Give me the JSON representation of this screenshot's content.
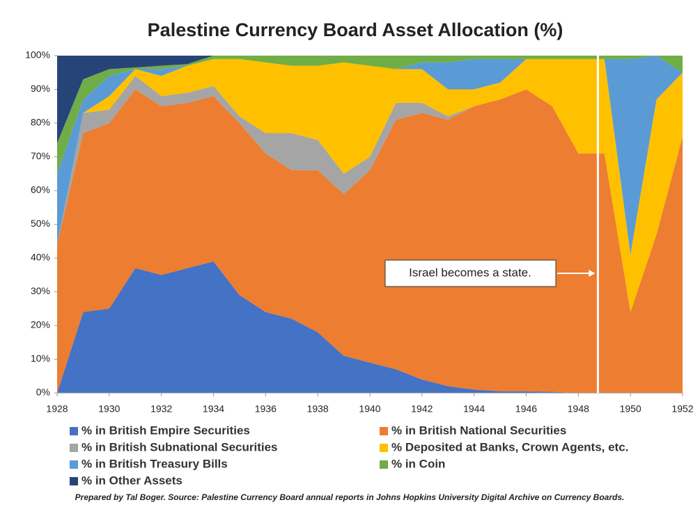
{
  "chart_data": {
    "type": "stacked_area",
    "title": "Palestine Currency Board Asset Allocation (%)",
    "x": [
      1928,
      1929,
      1930,
      1931,
      1932,
      1933,
      1934,
      1935,
      1936,
      1937,
      1938,
      1939,
      1940,
      1941,
      1942,
      1943,
      1944,
      1945,
      1946,
      1947,
      1948,
      1949,
      1950,
      1951,
      1952
    ],
    "series": [
      {
        "name": "% in British Empire Securities",
        "color": "#4472c4",
        "values": [
          0,
          24,
          25,
          37,
          35,
          37,
          39,
          29,
          24,
          22,
          18,
          11,
          9,
          7,
          4,
          2,
          1,
          0.5,
          0.5,
          0.3,
          0,
          0,
          0,
          0,
          0
        ]
      },
      {
        "name": "% in British National Securities",
        "color": "#ed7d31",
        "values": [
          44,
          53,
          55,
          53,
          50,
          49,
          49,
          51,
          47,
          44,
          48,
          48,
          57,
          74,
          79,
          79,
          84,
          86.5,
          89.5,
          84.7,
          71,
          71,
          24,
          47,
          76
        ]
      },
      {
        "name": "% in British Subnational Securities",
        "color": "#a5a5a5",
        "values": [
          0,
          6,
          4,
          4,
          3,
          3,
          3,
          2,
          6,
          11,
          9,
          6,
          4,
          5,
          3,
          1,
          0,
          0,
          0,
          0,
          0,
          0,
          0,
          0,
          0
        ]
      },
      {
        "name": "% Deposited at Banks, Crown Agents, etc.",
        "color": "#ffc000",
        "values": [
          0,
          0,
          4,
          2,
          6,
          8,
          8,
          17,
          21,
          20,
          22,
          33,
          27,
          10,
          10,
          8,
          5,
          5,
          9,
          14,
          28,
          28,
          17,
          40,
          19
        ]
      },
      {
        "name": "% in British Treasury Bills",
        "color": "#5b9bd5",
        "values": [
          21,
          4,
          6,
          0,
          2,
          0,
          0,
          0,
          0,
          0,
          0,
          0,
          0,
          0,
          2,
          8,
          9,
          7,
          0,
          0,
          0,
          0,
          58,
          13,
          0
        ]
      },
      {
        "name": "% in Coin",
        "color": "#70ad47",
        "values": [
          9,
          6,
          2,
          0.5,
          1,
          0.5,
          1,
          1,
          2,
          3,
          3,
          2,
          3,
          4,
          2,
          2,
          1,
          1,
          1,
          1,
          1,
          1,
          1,
          0,
          5
        ]
      },
      {
        "name": "% in Other Assets",
        "color": "#264478",
        "values": [
          26,
          7,
          4,
          3.5,
          3,
          2.5,
          0,
          0,
          0,
          0,
          0,
          0,
          0,
          0,
          0,
          0,
          0,
          0,
          0,
          0,
          0,
          0,
          0,
          0,
          0
        ]
      }
    ],
    "xlim": [
      1928,
      1952
    ],
    "xticks": [
      1928,
      1930,
      1932,
      1934,
      1936,
      1938,
      1940,
      1942,
      1944,
      1946,
      1948,
      1950,
      1952
    ],
    "ylim": [
      0,
      100
    ],
    "yticks": [
      {
        "value": 0,
        "label": "0%"
      },
      {
        "value": 10,
        "label": "10%"
      },
      {
        "value": 20,
        "label": "20%"
      },
      {
        "value": 30,
        "label": "30%"
      },
      {
        "value": 40,
        "label": "40%"
      },
      {
        "value": 50,
        "label": "50%"
      },
      {
        "value": 60,
        "label": "60%"
      },
      {
        "value": 70,
        "label": "70%"
      },
      {
        "value": 80,
        "label": "80%"
      },
      {
        "value": 90,
        "label": "90%"
      },
      {
        "value": 100,
        "label": "100%"
      }
    ],
    "annotation": {
      "text": "Israel becomes a state.",
      "x": 1948.75
    },
    "source": "Prepared by Tal Boger. Source: Palestine Currency Board annual reports in Johns Hopkins University Digital Archive on Currency Boards."
  }
}
